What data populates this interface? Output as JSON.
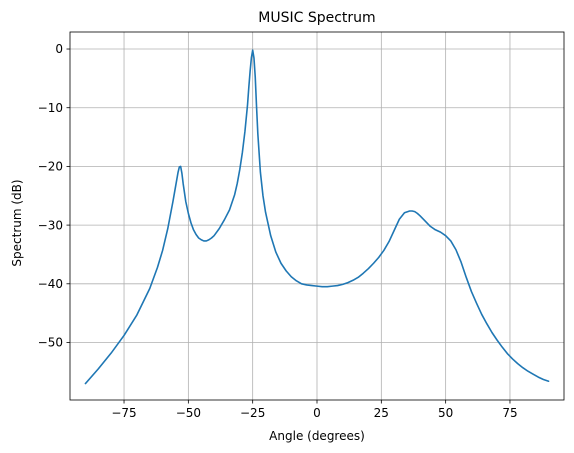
{
  "chart_data": {
    "type": "line",
    "title": "MUSIC Spectrum",
    "xlabel": "Angle (degrees)",
    "ylabel": "Spectrum (dB)",
    "xlim": [
      -96,
      96
    ],
    "ylim": [
      -59.8,
      2.9
    ],
    "xticks": [
      -75,
      -50,
      -25,
      0,
      25,
      50,
      75
    ],
    "yticks": [
      0,
      -10,
      -20,
      -30,
      -40,
      -50
    ],
    "grid": true,
    "line_color": "#1f77b4",
    "series": [
      {
        "x": [
          -90,
          -85,
          -80,
          -75,
          -70,
          -65,
          -62,
          -60,
          -58,
          -56,
          -55,
          -54,
          -53.5,
          -53,
          -52.5,
          -52,
          -51,
          -50,
          -49,
          -48,
          -47,
          -46,
          -45,
          -44,
          -43,
          -42,
          -41,
          -40,
          -38,
          -36,
          -34,
          -32,
          -31,
          -30,
          -29,
          -28,
          -27,
          -26.5,
          -26,
          -25.5,
          -25,
          -24.5,
          -24,
          -23.5,
          -23,
          -22,
          -21,
          -20,
          -18,
          -16,
          -14,
          -12,
          -10,
          -8,
          -6,
          -4,
          -2,
          0,
          2,
          4,
          6,
          8,
          10,
          12,
          14,
          16,
          18,
          20,
          22,
          24,
          26,
          28,
          30,
          32,
          34,
          36,
          37,
          38,
          39,
          40,
          42,
          44,
          46,
          48,
          50,
          52,
          54,
          56,
          58,
          60,
          62,
          64,
          66,
          68,
          70,
          72,
          74,
          76,
          78,
          80,
          82,
          84,
          86,
          88,
          90
        ],
        "values": [
          -57.0,
          -54.5,
          -51.8,
          -48.8,
          -45.3,
          -40.8,
          -37.2,
          -34.3,
          -30.6,
          -26.0,
          -23.5,
          -21.0,
          -20.1,
          -20.0,
          -21.2,
          -23.0,
          -26.0,
          -28.0,
          -29.6,
          -30.8,
          -31.6,
          -32.2,
          -32.5,
          -32.7,
          -32.7,
          -32.5,
          -32.2,
          -31.8,
          -30.6,
          -29.1,
          -27.4,
          -24.8,
          -22.9,
          -20.5,
          -17.6,
          -14.0,
          -9.5,
          -6.5,
          -3.8,
          -1.5,
          -0.2,
          -1.5,
          -4.8,
          -9.8,
          -14.4,
          -21.0,
          -25.0,
          -27.8,
          -31.8,
          -34.6,
          -36.5,
          -37.8,
          -38.8,
          -39.5,
          -40.0,
          -40.2,
          -40.3,
          -40.4,
          -40.5,
          -40.5,
          -40.4,
          -40.3,
          -40.1,
          -39.8,
          -39.4,
          -38.9,
          -38.2,
          -37.4,
          -36.5,
          -35.5,
          -34.3,
          -32.8,
          -30.9,
          -29.0,
          -27.9,
          -27.6,
          -27.6,
          -27.7,
          -28.0,
          -28.4,
          -29.3,
          -30.2,
          -30.8,
          -31.2,
          -31.8,
          -32.7,
          -34.2,
          -36.3,
          -38.9,
          -41.3,
          -43.3,
          -45.2,
          -46.8,
          -48.3,
          -49.6,
          -50.8,
          -51.9,
          -52.8,
          -53.6,
          -54.3,
          -54.9,
          -55.4,
          -55.9,
          -56.3,
          -56.6
        ]
      }
    ]
  }
}
